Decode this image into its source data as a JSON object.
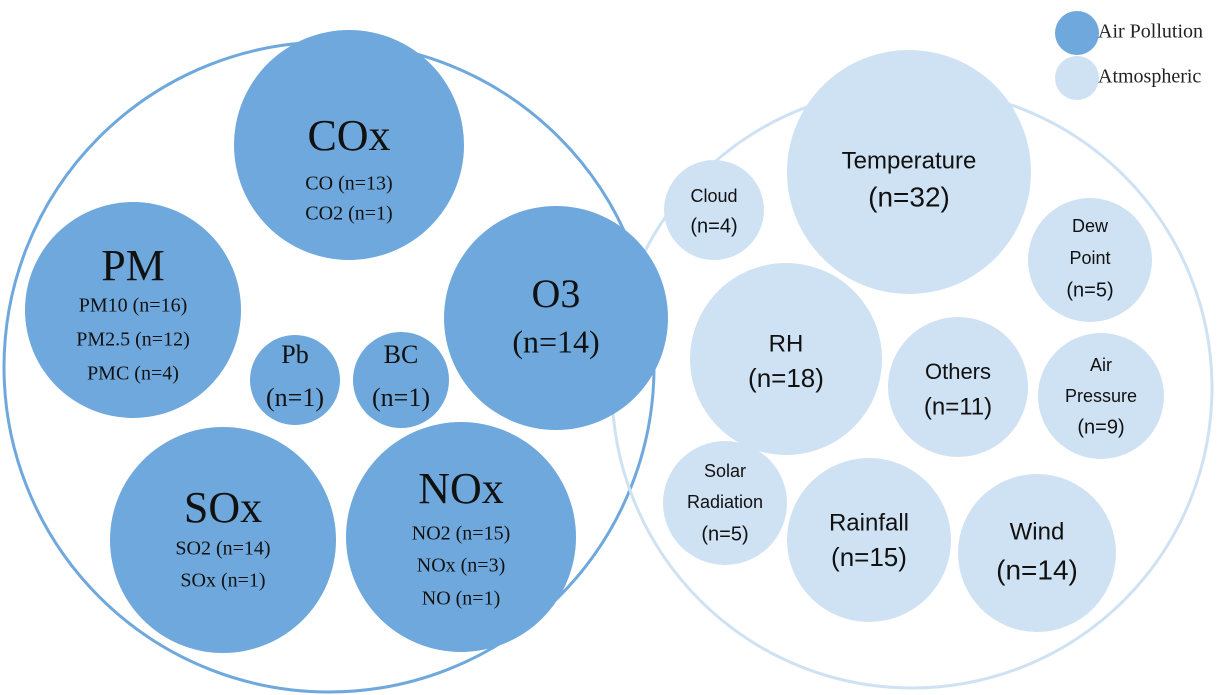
{
  "legend": [
    {
      "label": "Air Pollution"
    },
    {
      "label": "Atmospheric"
    }
  ],
  "groups": [
    {
      "bubbles": [
        {
          "lines": [
            "COx",
            "CO (n=13)",
            "CO2 (n=1)"
          ]
        },
        {
          "lines": [
            "PM",
            "PM10 (n=16)",
            "PM2.5 (n=12)",
            "PMC (n=4)"
          ]
        },
        {
          "lines": [
            "Pb",
            "(n=1)"
          ]
        },
        {
          "lines": [
            "BC",
            "(n=1)"
          ]
        },
        {
          "lines": [
            "O3",
            "(n=14)"
          ]
        },
        {
          "lines": [
            "SOx",
            "SO2 (n=14)",
            "SOx (n=1)"
          ]
        },
        {
          "lines": [
            "NOx",
            "NO2 (n=15)",
            "NOx (n=3)",
            "NO (n=1)"
          ]
        }
      ]
    },
    {
      "bubbles": [
        {
          "lines": [
            "Temperature",
            "(n=32)"
          ]
        },
        {
          "lines": [
            "Cloud",
            "(n=4)"
          ]
        },
        {
          "lines": [
            "Dew",
            "Point",
            "(n=5)"
          ]
        },
        {
          "lines": [
            "RH",
            "(n=18)"
          ]
        },
        {
          "lines": [
            "Others",
            "(n=11)"
          ]
        },
        {
          "lines": [
            "Air",
            "Pressure",
            "(n=9)"
          ]
        },
        {
          "lines": [
            "Solar",
            "Radiation",
            "(n=5)"
          ]
        },
        {
          "lines": [
            "Rainfall",
            "(n=15)"
          ]
        },
        {
          "lines": [
            "Wind",
            "(n=14)"
          ]
        }
      ]
    }
  ]
}
